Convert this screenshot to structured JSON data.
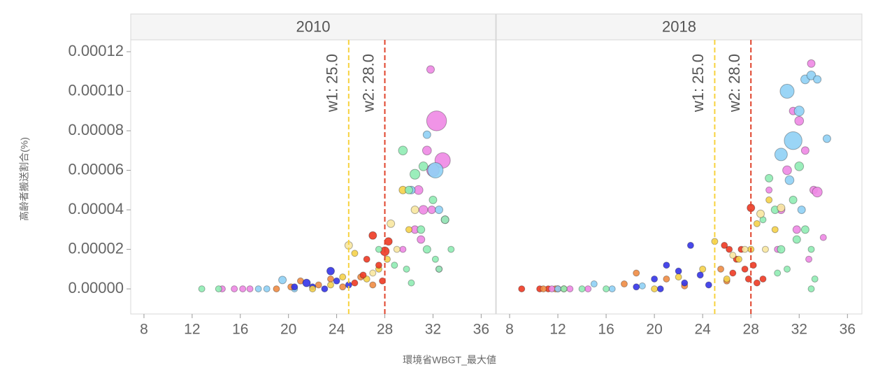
{
  "xlabel": "環境省WBGT_最大値",
  "ylabel": "高齢者搬送割合(%)",
  "chart_data": [
    {
      "type": "scatter",
      "title": "2010",
      "xlim": [
        6.9,
        37.2
      ],
      "xticks": [
        8,
        12,
        16,
        20,
        24,
        28,
        32,
        36
      ],
      "ylim": [
        -1.27e-05,
        0.000126
      ],
      "yticks": [
        {
          "value": 0,
          "label": "0.00000"
        },
        {
          "value": 2e-05,
          "label": "0.00002"
        },
        {
          "value": 4e-05,
          "label": "0.00004"
        },
        {
          "value": 6e-05,
          "label": "0.00006"
        },
        {
          "value": 8e-05,
          "label": "0.00008"
        },
        {
          "value": 0.0001,
          "label": "0.00010"
        },
        {
          "value": 0.00012,
          "label": "0.00012"
        }
      ],
      "annotations": [
        {
          "x": 25,
          "label": "w1: 25.0",
          "color": "#f7d23e"
        },
        {
          "x": 28,
          "label": "w2: 28.0",
          "color": "#e0442c"
        }
      ],
      "series": [
        {
          "color": "#ee88e4",
          "x": [
            14.5,
            15.5,
            16.2,
            16.8,
            30.5,
            31.2,
            31.8,
            32.3,
            32.0,
            31.5,
            30.8,
            32.8,
            33.0,
            31.0,
            29.5,
            32.5,
            31.9
          ],
          "values": [
            0,
            0,
            0,
            0,
            3e-05,
            4e-05,
            0.000111,
            8.5e-05,
            6e-05,
            7e-05,
            5e-05,
            6.5e-05,
            3.5e-05,
            2.5e-05,
            2e-05,
            1e-05,
            4e-05
          ],
          "sizes": [
            1,
            1,
            1,
            1,
            1.5,
            2,
            1.5,
            10,
            4,
            2,
            2,
            6,
            1.5,
            1.5,
            1,
            1,
            1.5
          ]
        },
        {
          "color": "#8fd0f5",
          "x": [
            17.5,
            18.2,
            19.5,
            20.5,
            31.5,
            32.2,
            32.5,
            30.2
          ],
          "values": [
            0,
            0,
            4.5e-06,
            0,
            7.8e-05,
            6e-05,
            4e-05,
            5e-05
          ],
          "sizes": [
            1,
            1,
            1.5,
            1,
            1.5,
            6,
            1.5,
            1.5
          ]
        },
        {
          "color": "#f08c44",
          "x": [
            19,
            20.2,
            21,
            22.5,
            23.5,
            24.5,
            26,
            27
          ],
          "values": [
            0,
            1e-06,
            4e-06,
            2e-06,
            5e-06,
            1e-06,
            6e-06,
            2e-06
          ],
          "sizes": [
            1,
            1,
            1,
            1,
            1,
            1,
            1,
            1
          ]
        },
        {
          "color": "#3434e8",
          "x": [
            20.5,
            21.5,
            22,
            23.5,
            24,
            25,
            23
          ],
          "values": [
            1e-06,
            3e-06,
            1e-06,
            9e-06,
            4e-06,
            2e-06,
            0
          ],
          "sizes": [
            1,
            1.5,
            1,
            1.5,
            1,
            1,
            1
          ]
        },
        {
          "color": "#f5d24a",
          "x": [
            22,
            23.5,
            24.5,
            25.5,
            26.5,
            27.5,
            28.2,
            29.5,
            30
          ],
          "values": [
            0,
            2e-06,
            6e-06,
            1.8e-05,
            5e-06,
            1e-05,
            1.5e-05,
            5e-05,
            3e-05
          ],
          "sizes": [
            1,
            1,
            1,
            1,
            1,
            1,
            1,
            1.5,
            1
          ]
        },
        {
          "color": "#f8e7a0",
          "x": [
            25,
            27,
            28.5,
            29,
            30.5
          ],
          "values": [
            2.2e-05,
            8e-06,
            3.3e-05,
            2e-05,
            4e-05
          ],
          "sizes": [
            1.5,
            1,
            1.5,
            1,
            1.5
          ]
        },
        {
          "color": "#ee3a24",
          "x": [
            25.5,
            26.2,
            27,
            27.5,
            28,
            28.3,
            26.5,
            27.8
          ],
          "values": [
            3e-06,
            7e-06,
            2.7e-05,
            1.2e-05,
            1.9e-05,
            2.4e-05,
            1.5e-05,
            4e-06
          ],
          "sizes": [
            1,
            1,
            1.5,
            1,
            2,
            1.5,
            1,
            1
          ]
        },
        {
          "color": "#90ecb4",
          "x": [
            12.8,
            14.2,
            29.5,
            30,
            30.5,
            31,
            31.5,
            32,
            32.5,
            33,
            33.5,
            29.8,
            30.2,
            31.2,
            32.2,
            28.8,
            27.5
          ],
          "values": [
            0,
            0,
            7e-05,
            5e-05,
            5.8e-05,
            3e-05,
            2e-05,
            4.5e-05,
            1e-05,
            3.5e-05,
            2e-05,
            1e-05,
            3e-06,
            6.2e-05,
            1.5e-05,
            1.2e-05,
            2e-05
          ],
          "sizes": [
            1,
            1,
            2,
            1.5,
            2.5,
            1.5,
            1.5,
            1.5,
            1,
            1.5,
            1,
            1,
            1,
            2,
            1,
            1,
            1
          ]
        }
      ]
    },
    {
      "type": "scatter",
      "title": "2018",
      "xlim": [
        6.9,
        37.2
      ],
      "xticks": [
        8,
        12,
        16,
        20,
        24,
        28,
        32,
        36
      ],
      "ylim": [
        -1.27e-05,
        0.000126
      ],
      "annotations": [
        {
          "x": 25,
          "label": "w1: 25.0",
          "color": "#f7d23e"
        },
        {
          "x": 28,
          "label": "w2: 28.0",
          "color": "#e0442c"
        }
      ],
      "series": [
        {
          "color": "#ee3a24",
          "x": [
            9,
            10.5,
            11.2,
            12,
            25.8,
            26.2,
            26.8,
            27.2,
            27.5,
            28,
            28.2,
            27.8,
            28.5,
            29,
            26.5
          ],
          "values": [
            0,
            0,
            0,
            0,
            2.2e-05,
            2e-05,
            1.5e-05,
            2e-05,
            1e-05,
            4.1e-05,
            1.2e-05,
            5e-06,
            3e-06,
            5e-06,
            8e-06
          ],
          "sizes": [
            1,
            1,
            1,
            1,
            1,
            1,
            1,
            1,
            1,
            1.5,
            1,
            1,
            1,
            1,
            1
          ]
        },
        {
          "color": "#f08c44",
          "x": [
            10.8,
            11.8,
            12.5,
            17.5,
            18.5,
            21,
            22.5,
            25.5,
            26
          ],
          "values": [
            0,
            0,
            0,
            2.5e-06,
            8e-06,
            5e-06,
            1.5e-06,
            1e-05,
            4e-06
          ],
          "sizes": [
            1,
            1,
            1,
            1,
            1,
            1,
            1,
            1,
            1
          ]
        },
        {
          "color": "#ee88e4",
          "x": [
            11.5,
            13,
            14.5,
            29.5,
            30.5,
            31,
            31.5,
            32,
            32.5,
            33,
            33.2,
            33.5,
            34,
            31.8,
            30.2,
            32.8
          ],
          "values": [
            0,
            0,
            0,
            5e-05,
            4e-05,
            6e-05,
            9e-05,
            8.5e-05,
            7e-05,
            0.000114,
            5e-05,
            4.9e-05,
            2.6e-05,
            3e-05,
            2e-05,
            1.5e-05
          ],
          "sizes": [
            1,
            1,
            1,
            1,
            1.5,
            2,
            1.5,
            2,
            1.5,
            1.5,
            1.5,
            2.5,
            1,
            1.5,
            1,
            1
          ]
        },
        {
          "color": "#8fd0f5",
          "x": [
            12,
            15,
            16.5,
            19,
            30.5,
            31,
            31.5,
            32,
            32.5,
            33,
            33.5,
            34.3,
            32.2,
            31.2
          ],
          "values": [
            0,
            2.5e-06,
            0,
            1.5e-06,
            6.8e-05,
            0.0001,
            7.5e-05,
            9e-05,
            0.000106,
            0.000108,
            0.000106,
            7.6e-05,
            4e-05,
            5.5e-05
          ],
          "sizes": [
            1,
            1,
            1,
            1,
            4,
            5,
            8,
            2.5,
            2,
            2,
            1.5,
            1.5,
            1.5,
            2
          ]
        },
        {
          "color": "#90ecb4",
          "x": [
            12.5,
            14,
            16,
            29.5,
            30,
            30.5,
            31,
            31.5,
            32,
            32.5,
            33,
            33.3,
            29,
            30.2,
            31.8,
            33
          ],
          "values": [
            0,
            0,
            0,
            5.6e-05,
            4e-05,
            2e-05,
            1e-05,
            4.5e-05,
            6.2e-05,
            3e-05,
            2e-05,
            5e-06,
            3.5e-05,
            8e-06,
            2.5e-05,
            0
          ],
          "sizes": [
            1,
            1,
            1,
            1.5,
            1.5,
            1.5,
            1,
            1.5,
            2,
            1.5,
            1,
            1,
            1,
            1,
            1.5,
            1
          ]
        },
        {
          "color": "#3434e8",
          "x": [
            18.5,
            20,
            21,
            22,
            22.5,
            23,
            23.8,
            24.5,
            20.5
          ],
          "values": [
            1e-06,
            5e-06,
            1.2e-05,
            9e-06,
            3e-06,
            2.2e-05,
            7e-06,
            2e-06,
            0
          ],
          "sizes": [
            1,
            1,
            1,
            1,
            1,
            1,
            1,
            1,
            1
          ]
        },
        {
          "color": "#f5d24a",
          "x": [
            20,
            22,
            24,
            25,
            26,
            27,
            28,
            28.5,
            29.5,
            30
          ],
          "values": [
            0,
            6e-06,
            1e-05,
            2.4e-05,
            5e-06,
            1.5e-05,
            2e-05,
            3.3e-05,
            4.5e-05,
            3e-05
          ],
          "sizes": [
            1,
            1,
            1,
            1,
            1,
            1,
            1,
            1,
            1,
            1
          ]
        },
        {
          "color": "#f8e7a0",
          "x": [
            26.5,
            27.5,
            28.8,
            29.2,
            30.5
          ],
          "values": [
            1.7e-05,
            2e-05,
            3.8e-05,
            2e-05,
            4.1e-05
          ],
          "sizes": [
            1,
            1,
            1.5,
            1,
            1.5
          ]
        }
      ]
    }
  ]
}
